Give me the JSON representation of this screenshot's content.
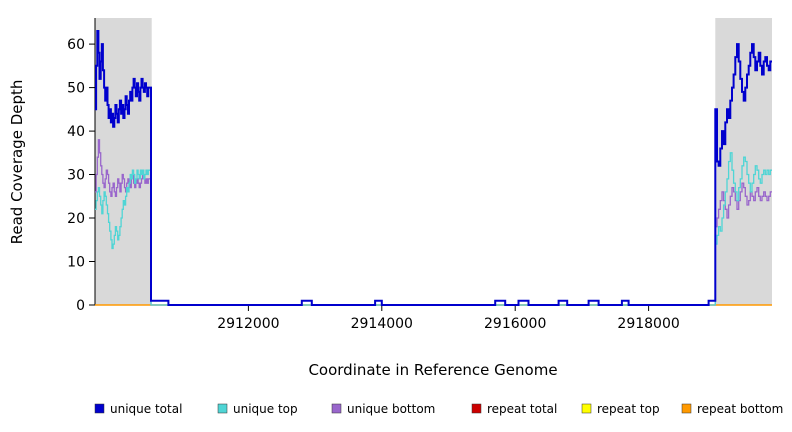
{
  "figure": {
    "background": "#ffffff"
  },
  "chart_data": {
    "type": "line",
    "step": true,
    "title": "",
    "xlabel": "Coordinate in Reference Genome",
    "ylabel": "Read Coverage Depth",
    "xlim": [
      2909700,
      2919850
    ],
    "ylim": [
      0,
      66
    ],
    "xticks": [
      2912000,
      2914000,
      2916000,
      2918000
    ],
    "yticks": [
      0,
      10,
      20,
      30,
      40,
      50,
      60
    ],
    "grid": false,
    "shaded_regions": [
      {
        "x0": 2909700,
        "x1": 2910550,
        "color": "#d9d9d9"
      },
      {
        "x0": 2919000,
        "x1": 2919850,
        "color": "#d9d9d9"
      }
    ],
    "series": [
      {
        "name": "repeat total",
        "color": "#cc0000",
        "width": 1,
        "segments": [
          {
            "points": [
              [
                2909700,
                0
              ],
              [
                2919850,
                0
              ]
            ]
          }
        ]
      },
      {
        "name": "repeat top",
        "color": "#ffff00",
        "width": 1,
        "segments": [
          {
            "points": [
              [
                2909700,
                0
              ],
              [
                2919850,
                0
              ]
            ]
          }
        ]
      },
      {
        "name": "repeat bottom",
        "color": "#ff9900",
        "width": 1.5,
        "segments": [
          {
            "points": [
              [
                2909700,
                0
              ],
              [
                2919850,
                0
              ]
            ]
          }
        ]
      },
      {
        "name": "unique bottom",
        "color": "#9966cc",
        "width": 1.3,
        "segments": [
          {
            "x_start": 2909700,
            "x_step": 17,
            "values": [
              26,
              30,
              34,
              38,
              35,
              32,
              30,
              28,
              27,
              29,
              31,
              30,
              28,
              26,
              25,
              27,
              28,
              26,
              25,
              27,
              29,
              28,
              26,
              28,
              30,
              29,
              27,
              26,
              28,
              29,
              28,
              27,
              29,
              30,
              28,
              27,
              28,
              29,
              28,
              27,
              28,
              29,
              30,
              29,
              28,
              29,
              28,
              29
            ]
          },
          {
            "points": [
              [
                2910540,
                0
              ]
            ]
          },
          {
            "x_start": 2919000,
            "x_step": 25,
            "values": [
              18,
              20,
              22,
              24,
              26,
              24,
              22,
              20,
              23,
              25,
              27,
              26,
              24,
              22,
              24,
              26,
              28,
              27,
              25,
              23,
              24,
              26,
              25,
              24,
              26,
              27,
              25,
              24,
              25,
              26,
              25,
              24,
              25,
              26
            ]
          }
        ]
      },
      {
        "name": "unique top",
        "color": "#4fd5d5",
        "width": 1.3,
        "segments": [
          {
            "x_start": 2909700,
            "x_step": 17,
            "values": [
              22,
              24,
              26,
              27,
              25,
              23,
              21,
              24,
              26,
              25,
              23,
              21,
              19,
              17,
              15,
              13,
              14,
              16,
              18,
              17,
              15,
              16,
              18,
              20,
              22,
              24,
              23,
              25,
              27,
              26,
              28,
              30,
              29,
              31,
              30,
              28,
              29,
              31,
              30,
              29,
              31,
              30,
              31,
              29,
              30,
              31,
              30,
              31
            ]
          },
          {
            "points": [
              [
                2910540,
                0
              ]
            ]
          },
          {
            "x_start": 2919000,
            "x_step": 25,
            "values": [
              14,
              16,
              18,
              17,
              20,
              23,
              26,
              29,
              33,
              35,
              31,
              28,
              26,
              24,
              27,
              29,
              32,
              34,
              33,
              30,
              28,
              26,
              28,
              30,
              32,
              31,
              29,
              28,
              30,
              31,
              30,
              31,
              30,
              31
            ]
          }
        ]
      },
      {
        "name": "unique total",
        "color": "#0000cd",
        "width": 2,
        "segments": [
          {
            "x_start": 2909700,
            "x_step": 17,
            "values": [
              45,
              55,
              63,
              58,
              52,
              56,
              60,
              54,
              50,
              47,
              50,
              46,
              43,
              45,
              42,
              44,
              41,
              43,
              46,
              44,
              42,
              45,
              47,
              44,
              46,
              43,
              45,
              48,
              46,
              44,
              47,
              49,
              47,
              50,
              52,
              50,
              48,
              51,
              49,
              47,
              50,
              52,
              50,
              49,
              51,
              50,
              48,
              50
            ]
          },
          {
            "points": [
              [
                2910540,
                1
              ],
              [
                2910800,
                0
              ],
              [
                2912800,
                1
              ],
              [
                2912950,
                0
              ],
              [
                2913900,
                1
              ],
              [
                2914000,
                0
              ],
              [
                2915700,
                1
              ],
              [
                2915850,
                0
              ],
              [
                2916050,
                1
              ],
              [
                2916200,
                0
              ],
              [
                2916650,
                1
              ],
              [
                2916780,
                0
              ],
              [
                2917100,
                1
              ],
              [
                2917250,
                0
              ],
              [
                2917600,
                1
              ],
              [
                2917700,
                0
              ],
              [
                2918900,
                1
              ]
            ]
          },
          {
            "x_start": 2919000,
            "x_step": 25,
            "values": [
              45,
              33,
              32,
              36,
              40,
              37,
              42,
              45,
              43,
              47,
              50,
              53,
              57,
              60,
              56,
              52,
              49,
              47,
              50,
              53,
              55,
              58,
              60,
              57,
              54,
              56,
              58,
              55,
              53,
              56,
              57,
              55,
              54,
              56
            ]
          }
        ]
      }
    ],
    "legend": [
      {
        "label": "unique total",
        "color": "#0000cd"
      },
      {
        "label": "unique top",
        "color": "#4fd5d5"
      },
      {
        "label": "unique bottom",
        "color": "#9966cc"
      },
      {
        "label": "repeat total",
        "color": "#cc0000"
      },
      {
        "label": "repeat top",
        "color": "#ffff00"
      },
      {
        "label": "repeat bottom",
        "color": "#ff9900"
      }
    ],
    "legend_position": "bottom"
  }
}
